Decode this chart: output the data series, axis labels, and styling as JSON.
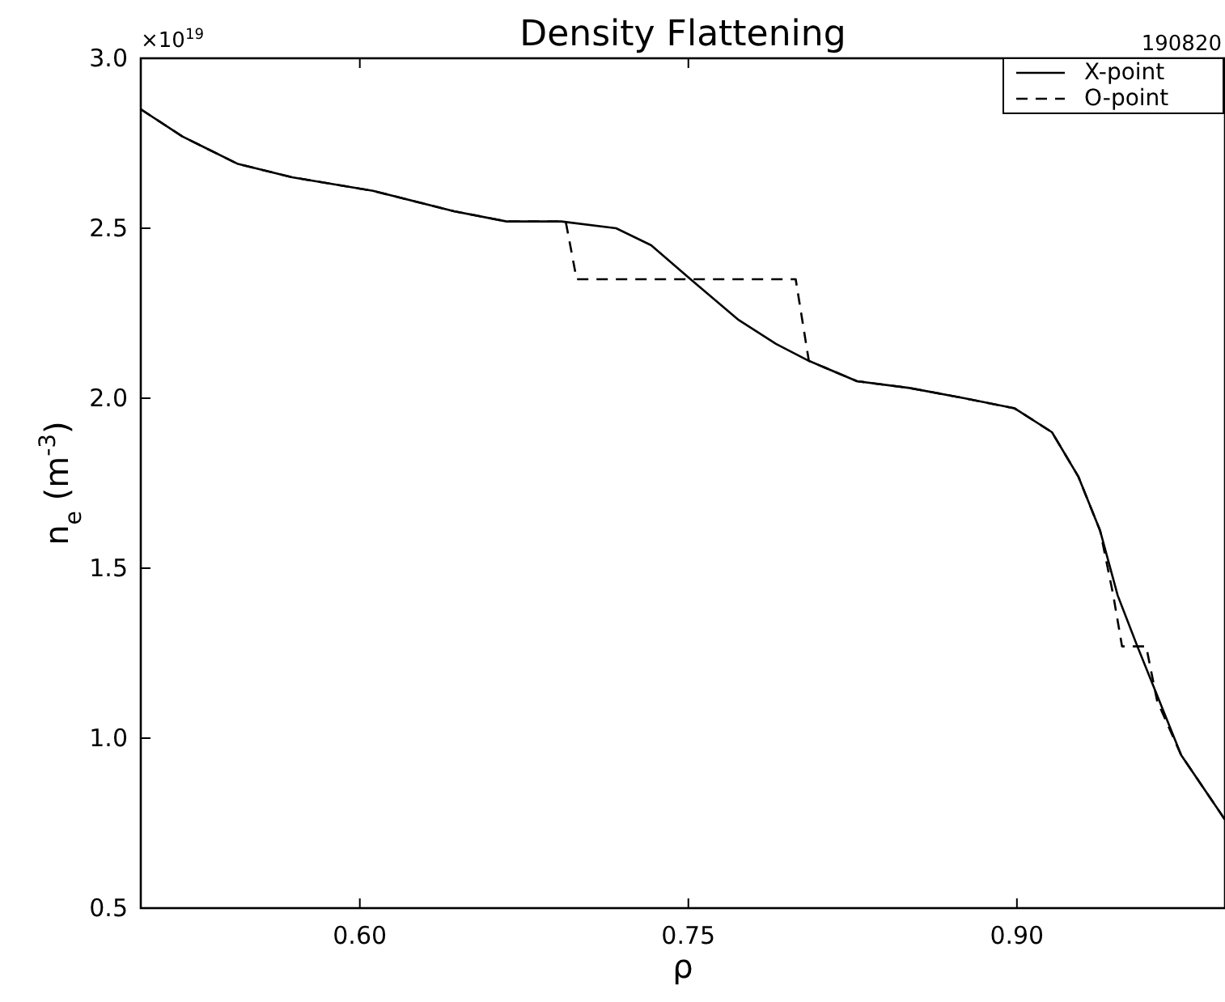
{
  "chart_data": {
    "type": "line",
    "title": "Density Flattening",
    "xlabel": "ρ",
    "ylabel": "n$_{e}$ (m$^{-3}$)",
    "annotations": [
      "×10$^{19}$",
      "190820"
    ],
    "xlim": [
      0.5,
      0.995
    ],
    "ylim": [
      0.5,
      3.0
    ],
    "xticks": [
      {
        "value": 0.6,
        "label": "0.60"
      },
      {
        "value": 0.75,
        "label": "0.75"
      },
      {
        "value": 0.9,
        "label": "0.90"
      }
    ],
    "yticks": [
      0.5,
      {
        "value": 1,
        "label": "1.0"
      },
      1.5,
      {
        "value": 2,
        "label": "2.0"
      },
      2.5,
      {
        "value": 3,
        "label": "3.0"
      }
    ],
    "legend": "top right",
    "grid": false,
    "series": [
      {
        "name": "X-point",
        "color": "#000000",
        "line_style": "solid",
        "x": [
          0.5,
          0.519,
          0.544,
          0.569,
          0.606,
          0.643,
          0.667,
          0.692,
          0.717,
          0.733,
          0.751,
          0.773,
          0.79,
          0.805,
          0.827,
          0.851,
          0.876,
          0.899,
          0.916,
          0.928,
          0.938,
          0.946,
          0.955,
          0.965,
          0.975,
          0.995
        ],
        "values": [
          2.85,
          2.77,
          2.69,
          2.65,
          2.61,
          2.55,
          2.52,
          2.52,
          2.5,
          2.45,
          2.35,
          2.23,
          2.16,
          2.11,
          2.05,
          2.03,
          2.0,
          1.97,
          1.9,
          1.77,
          1.61,
          1.42,
          1.27,
          1.11,
          0.95,
          0.76
        ]
      },
      {
        "name": "O-point",
        "color": "#000000",
        "line_style": "dashed",
        "x": [
          0.5,
          0.519,
          0.544,
          0.569,
          0.606,
          0.643,
          0.667,
          0.692,
          0.694,
          0.699,
          0.799,
          0.805,
          0.827,
          0.851,
          0.876,
          0.899,
          0.916,
          0.928,
          0.938,
          0.944,
          0.948,
          0.959,
          0.964,
          0.975,
          0.995
        ],
        "values": [
          2.85,
          2.77,
          2.69,
          2.65,
          2.61,
          2.55,
          2.52,
          2.52,
          2.52,
          2.35,
          2.35,
          2.11,
          2.05,
          2.03,
          2.0,
          1.97,
          1.9,
          1.77,
          1.61,
          1.42,
          1.27,
          1.27,
          1.11,
          0.95,
          0.76
        ]
      }
    ]
  }
}
